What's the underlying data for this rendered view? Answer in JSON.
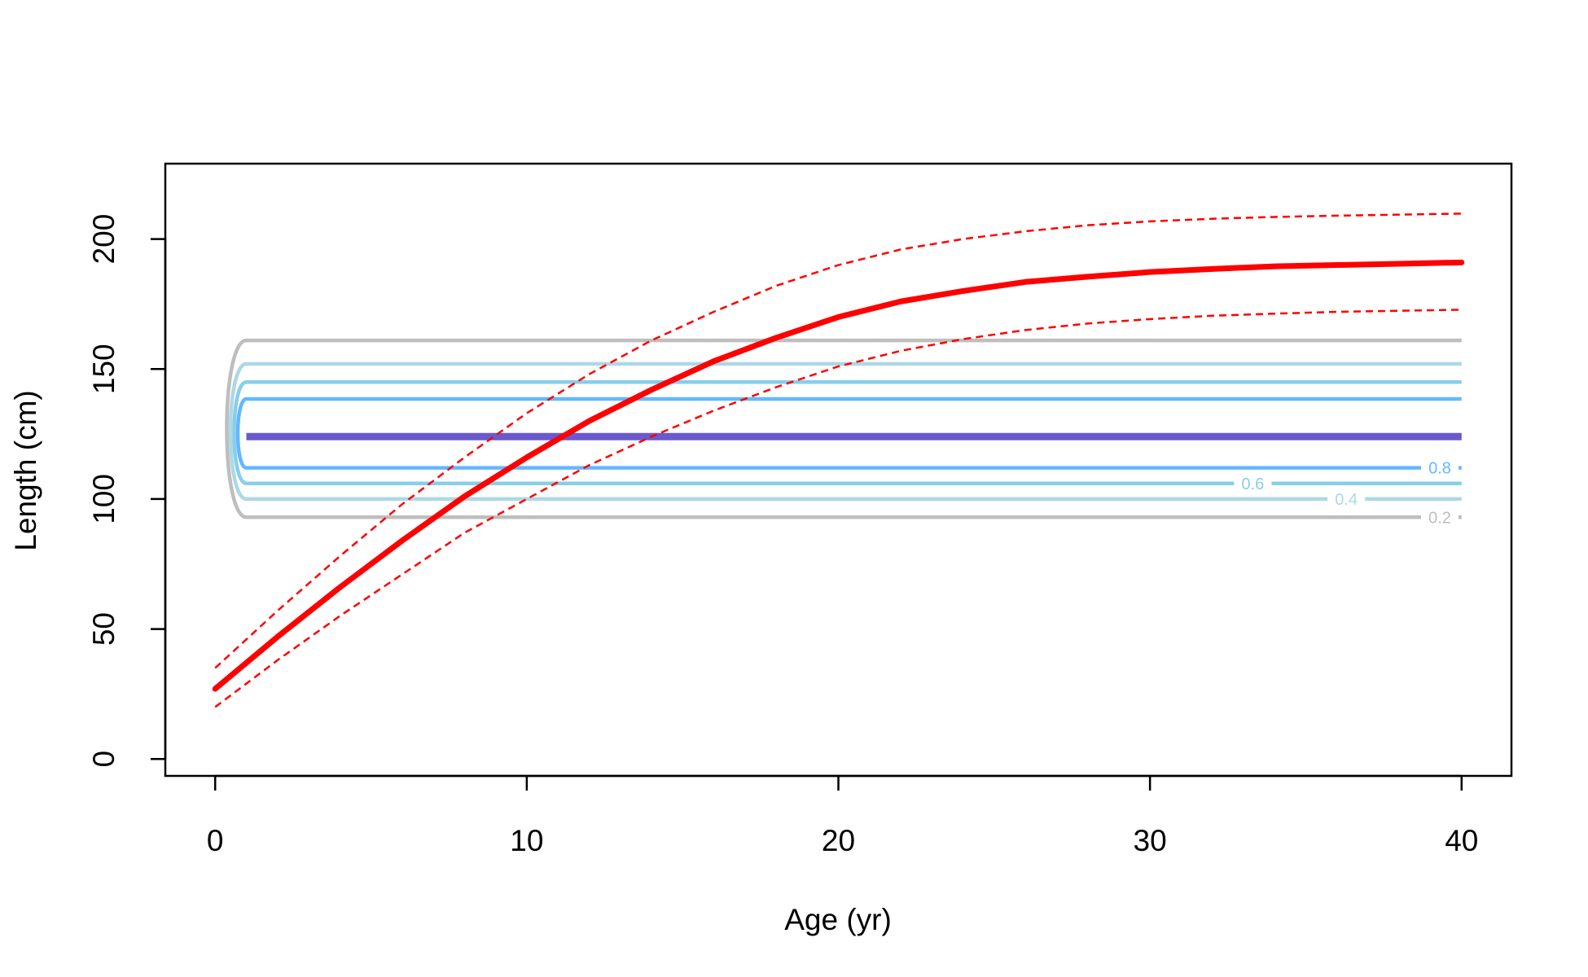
{
  "chart_data": {
    "type": "line",
    "title": "",
    "xlabel": "Age (yr)",
    "ylabel": "Length (cm)",
    "xlim": [
      -1.6,
      41.6
    ],
    "ylim": [
      -6.5,
      229
    ],
    "xticks": [
      0,
      10,
      20,
      30,
      40
    ],
    "yticks": [
      0,
      50,
      100,
      150,
      200
    ],
    "grid": false,
    "legend": "none",
    "growth_curve": {
      "color": "#ff0000",
      "x": [
        0,
        2,
        4,
        6,
        8,
        10,
        12,
        14,
        16,
        18,
        20,
        22,
        24,
        26,
        28,
        30,
        32,
        34,
        36,
        38,
        40
      ],
      "mean": [
        27,
        47,
        66,
        84,
        101,
        116,
        130,
        142,
        153,
        162,
        170,
        176,
        180,
        183.5,
        185.5,
        187.3,
        188.5,
        189.5,
        190,
        190.5,
        191
      ],
      "upper": [
        35,
        57,
        78,
        98,
        116,
        133,
        148,
        161,
        172,
        182,
        190,
        196,
        200,
        203,
        205.3,
        206.8,
        207.8,
        208.5,
        209,
        209.4,
        209.8
      ],
      "lower": [
        20,
        38,
        55,
        71,
        87,
        100,
        113,
        124,
        134,
        143,
        151,
        157,
        161.5,
        165,
        167.5,
        169.2,
        170.5,
        171.3,
        172,
        172.4,
        172.8
      ]
    },
    "contours": [
      {
        "level": "0.2",
        "color": "#bebebe",
        "y_low": 93,
        "y_high": 161,
        "label_x": 39.3
      },
      {
        "level": "0.4",
        "color": "#add8e6",
        "y_low": 100,
        "y_high": 152,
        "label_x": 36.3
      },
      {
        "level": "0.6",
        "color": "#87ceeb",
        "y_low": 106,
        "y_high": 145,
        "label_x": 33.3
      },
      {
        "level": "0.8",
        "color": "#63b8ff",
        "y_low": 112,
        "y_high": 138.5,
        "label_x": 39.3
      }
    ],
    "mode_line": {
      "color": "#6a5acd",
      "y": 124,
      "x_start": 1,
      "x_end": 40
    },
    "contour_x_range": [
      1,
      40
    ]
  }
}
